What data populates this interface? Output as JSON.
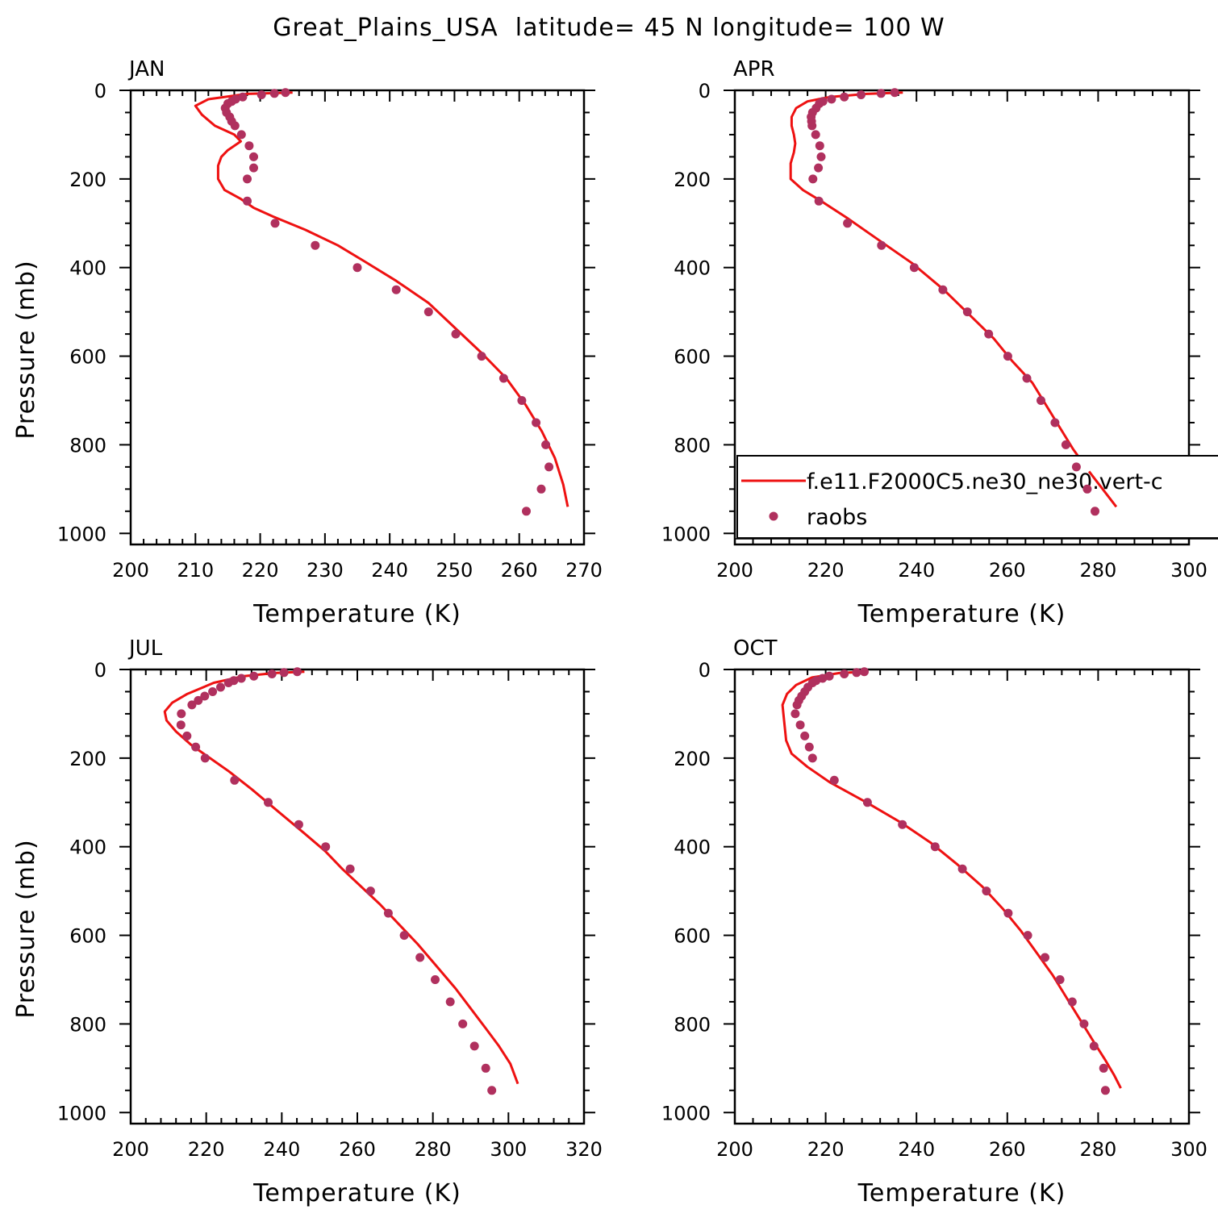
{
  "figure": {
    "title": "Great_Plains_USA  latitude= 45 N longitude= 100 W"
  },
  "chart_data": [
    {
      "type": "line",
      "panel": "JAN",
      "title": "JAN",
      "xlabel": "Temperature (K)",
      "ylabel": "Pressure (mb)",
      "xlim": [
        200,
        270
      ],
      "ylim": [
        1025,
        0
      ],
      "xticks": [
        200,
        210,
        220,
        230,
        240,
        250,
        260,
        270
      ],
      "yticks": [
        0,
        200,
        400,
        600,
        800,
        1000
      ],
      "series": [
        {
          "name": "f.e11.F2000C5.ne30_ne30.vert-c",
          "kind": "line",
          "color": "#ee1111",
          "points": [
            [
              225,
              5
            ],
            [
              218,
              8
            ],
            [
              212,
              20
            ],
            [
              210,
              35
            ],
            [
              211,
              55
            ],
            [
              213,
              80
            ],
            [
              216,
              100
            ],
            [
              217,
              115
            ],
            [
              215,
              135
            ],
            [
              214,
              150
            ],
            [
              213.5,
              170
            ],
            [
              213.5,
              200
            ],
            [
              214.5,
              225
            ],
            [
              217,
              245
            ],
            [
              219,
              265
            ],
            [
              222,
              285
            ],
            [
              227,
              315
            ],
            [
              232,
              350
            ],
            [
              236,
              385
            ],
            [
              241,
              430
            ],
            [
              246,
              480
            ],
            [
              250,
              535
            ],
            [
              254,
              590
            ],
            [
              258,
              650
            ],
            [
              261,
              710
            ],
            [
              263.5,
              770
            ],
            [
              265.5,
              830
            ],
            [
              266.8,
              890
            ],
            [
              267.5,
              940
            ]
          ]
        },
        {
          "name": "raobs",
          "kind": "scatter",
          "color": "#b0305e",
          "points": [
            [
              223.9,
              5
            ],
            [
              222.2,
              7
            ],
            [
              220.2,
              10
            ],
            [
              217.3,
              15
            ],
            [
              216.2,
              20
            ],
            [
              215.6,
              25
            ],
            [
              215,
              30
            ],
            [
              214.6,
              40
            ],
            [
              214.8,
              50
            ],
            [
              215.3,
              60
            ],
            [
              215.6,
              70
            ],
            [
              216.1,
              80
            ],
            [
              217.1,
              100
            ],
            [
              218.3,
              125
            ],
            [
              219,
              150
            ],
            [
              219,
              175
            ],
            [
              218,
              200
            ],
            [
              218,
              250
            ],
            [
              222.3,
              300
            ],
            [
              228.5,
              350
            ],
            [
              235,
              400
            ],
            [
              241,
              450
            ],
            [
              246,
              500
            ],
            [
              250.2,
              550
            ],
            [
              254.2,
              600
            ],
            [
              257.6,
              650
            ],
            [
              260.4,
              700
            ],
            [
              262.6,
              750
            ],
            [
              264.1,
              800
            ],
            [
              264.6,
              850
            ],
            [
              263.4,
              900
            ],
            [
              261.1,
              950
            ]
          ]
        }
      ]
    },
    {
      "type": "line",
      "panel": "APR",
      "title": "APR",
      "xlabel": "Temperature (K)",
      "ylabel": "",
      "xlim": [
        200,
        300
      ],
      "ylim": [
        1025,
        0
      ],
      "xticks": [
        200,
        220,
        240,
        260,
        280,
        300
      ],
      "yticks": [
        0,
        200,
        400,
        600,
        800,
        1000
      ],
      "series": [
        {
          "name": "f.e11.F2000C5.ne30_ne30.vert-c",
          "kind": "line",
          "color": "#ee1111",
          "points": [
            [
              237,
              5
            ],
            [
              229,
              8
            ],
            [
              221,
              15
            ],
            [
              216,
              25
            ],
            [
              213.5,
              40
            ],
            [
              212.5,
              60
            ],
            [
              212.5,
              80
            ],
            [
              213,
              100
            ],
            [
              213.3,
              120
            ],
            [
              213,
              140
            ],
            [
              212.3,
              165
            ],
            [
              212.3,
              200
            ],
            [
              215,
              225
            ],
            [
              219,
              250
            ],
            [
              225,
              290
            ],
            [
              232,
              340
            ],
            [
              239,
              390
            ],
            [
              246,
              450
            ],
            [
              252,
              510
            ],
            [
              257,
              560
            ],
            [
              261,
              610
            ],
            [
              265.5,
              660
            ],
            [
              268.5,
              710
            ],
            [
              271.5,
              760
            ],
            [
              274.5,
              810
            ],
            [
              278,
              860
            ],
            [
              281,
              900
            ],
            [
              284,
              940
            ]
          ]
        },
        {
          "name": "raobs",
          "kind": "scatter",
          "color": "#b0305e",
          "points": [
            [
              235.2,
              5
            ],
            [
              232.2,
              7
            ],
            [
              227.8,
              10
            ],
            [
              224.1,
              15
            ],
            [
              221.3,
              20
            ],
            [
              219.4,
              25
            ],
            [
              218.6,
              30
            ],
            [
              217.9,
              40
            ],
            [
              217.1,
              50
            ],
            [
              216.8,
              60
            ],
            [
              216.9,
              70
            ],
            [
              217,
              80
            ],
            [
              217.8,
              100
            ],
            [
              218.7,
              125
            ],
            [
              219,
              150
            ],
            [
              218.4,
              175
            ],
            [
              217.2,
              200
            ],
            [
              218.5,
              250
            ],
            [
              224.8,
              300
            ],
            [
              232.3,
              350
            ],
            [
              239.5,
              400
            ],
            [
              245.8,
              450
            ],
            [
              251.2,
              500
            ],
            [
              255.9,
              550
            ],
            [
              260.1,
              600
            ],
            [
              264.3,
              650
            ],
            [
              267.4,
              700
            ],
            [
              270.5,
              750
            ],
            [
              272.9,
              800
            ],
            [
              275.2,
              850
            ],
            [
              277.6,
              900
            ],
            [
              279.3,
              950
            ]
          ]
        }
      ],
      "legend": {
        "placement": "lower-right",
        "entries": [
          "f.e11.F2000C5.ne30_ne30.vert-c",
          "raobs"
        ]
      }
    },
    {
      "type": "line",
      "panel": "JUL",
      "title": "JUL",
      "xlabel": "Temperature (K)",
      "ylabel": "Pressure (mb)",
      "xlim": [
        200,
        320
      ],
      "ylim": [
        1025,
        0
      ],
      "xticks": [
        200,
        220,
        240,
        260,
        280,
        300,
        320
      ],
      "yticks": [
        0,
        200,
        400,
        600,
        800,
        1000
      ],
      "series": [
        {
          "name": "f.e11.F2000C5.ne30_ne30.vert-c",
          "kind": "line",
          "color": "#ee1111",
          "points": [
            [
              246,
              5
            ],
            [
              238,
              8
            ],
            [
              230,
              15
            ],
            [
              222,
              30
            ],
            [
              215,
              55
            ],
            [
              211,
              75
            ],
            [
              209,
              95
            ],
            [
              209.5,
              115
            ],
            [
              212,
              140
            ],
            [
              216,
              170
            ],
            [
              221,
              200
            ],
            [
              226,
              230
            ],
            [
              232,
              270
            ],
            [
              239,
              320
            ],
            [
              246,
              370
            ],
            [
              251.5,
              410
            ],
            [
              256,
              450
            ],
            [
              261,
              490
            ],
            [
              266,
              530
            ],
            [
              271,
              575
            ],
            [
              276,
              620
            ],
            [
              281,
              670
            ],
            [
              286,
              720
            ],
            [
              290,
              765
            ],
            [
              294,
              810
            ],
            [
              297.5,
              850
            ],
            [
              300.5,
              890
            ],
            [
              302.5,
              935
            ]
          ]
        },
        {
          "name": "raobs",
          "kind": "scatter",
          "color": "#b0305e",
          "points": [
            [
              244.1,
              5
            ],
            [
              240.6,
              7
            ],
            [
              237.4,
              10
            ],
            [
              232.6,
              15
            ],
            [
              229.3,
              20
            ],
            [
              227.3,
              25
            ],
            [
              225.9,
              30
            ],
            [
              223.8,
              40
            ],
            [
              221.7,
              50
            ],
            [
              219.6,
              60
            ],
            [
              217.9,
              70
            ],
            [
              216.2,
              80
            ],
            [
              213.4,
              100
            ],
            [
              213.3,
              125
            ],
            [
              214.9,
              150
            ],
            [
              217.2,
              175
            ],
            [
              219.7,
              200
            ],
            [
              227.5,
              250
            ],
            [
              236.4,
              300
            ],
            [
              244.5,
              350
            ],
            [
              251.6,
              400
            ],
            [
              258.1,
              450
            ],
            [
              263.5,
              500
            ],
            [
              268.2,
              550
            ],
            [
              272.4,
              600
            ],
            [
              276.6,
              650
            ],
            [
              280.6,
              700
            ],
            [
              284.6,
              750
            ],
            [
              287.9,
              800
            ],
            [
              291,
              850
            ],
            [
              294,
              900
            ],
            [
              295.6,
              950
            ]
          ]
        }
      ]
    },
    {
      "type": "line",
      "panel": "OCT",
      "title": "OCT",
      "xlabel": "Temperature (K)",
      "ylabel": "",
      "xlim": [
        200,
        300
      ],
      "ylim": [
        1025,
        0
      ],
      "xticks": [
        200,
        220,
        240,
        260,
        280,
        300
      ],
      "yticks": [
        0,
        200,
        400,
        600,
        800,
        1000
      ],
      "series": [
        {
          "name": "f.e11.F2000C5.ne30_ne30.vert-c",
          "kind": "line",
          "color": "#ee1111",
          "points": [
            [
              229,
              5
            ],
            [
              223,
              8
            ],
            [
              217,
              18
            ],
            [
              213.5,
              35
            ],
            [
              211.5,
              55
            ],
            [
              210.5,
              80
            ],
            [
              210.7,
              100
            ],
            [
              211,
              130
            ],
            [
              211.3,
              160
            ],
            [
              212.5,
              190
            ],
            [
              216,
              220
            ],
            [
              221,
              255
            ],
            [
              229,
              300
            ],
            [
              236.5,
              345
            ],
            [
              243,
              390
            ],
            [
              249,
              440
            ],
            [
              254.5,
              490
            ],
            [
              259,
              540
            ],
            [
              263,
              590
            ],
            [
              266.5,
              640
            ],
            [
              270,
              690
            ],
            [
              273,
              740
            ],
            [
              276,
              790
            ],
            [
              279,
              840
            ],
            [
              281.5,
              880
            ],
            [
              283.5,
              915
            ],
            [
              285,
              945
            ]
          ]
        },
        {
          "name": "raobs",
          "kind": "scatter",
          "color": "#b0305e",
          "points": [
            [
              228.5,
              5
            ],
            [
              226.8,
              7
            ],
            [
              224.1,
              10
            ],
            [
              220.8,
              15
            ],
            [
              219.3,
              20
            ],
            [
              217.9,
              25
            ],
            [
              217.1,
              30
            ],
            [
              216.1,
              40
            ],
            [
              215.4,
              50
            ],
            [
              214.7,
              60
            ],
            [
              214.1,
              70
            ],
            [
              213.7,
              80
            ],
            [
              213.3,
              100
            ],
            [
              214.4,
              125
            ],
            [
              215.4,
              150
            ],
            [
              216.4,
              175
            ],
            [
              217.1,
              200
            ],
            [
              221.9,
              250
            ],
            [
              229.2,
              300
            ],
            [
              236.9,
              350
            ],
            [
              244.1,
              400
            ],
            [
              250.1,
              450
            ],
            [
              255.4,
              500
            ],
            [
              260.2,
              550
            ],
            [
              264.5,
              600
            ],
            [
              268.3,
              650
            ],
            [
              271.6,
              700
            ],
            [
              274.3,
              750
            ],
            [
              276.9,
              800
            ],
            [
              279.1,
              850
            ],
            [
              281.2,
              900
            ],
            [
              281.6,
              950
            ]
          ]
        }
      ]
    }
  ]
}
